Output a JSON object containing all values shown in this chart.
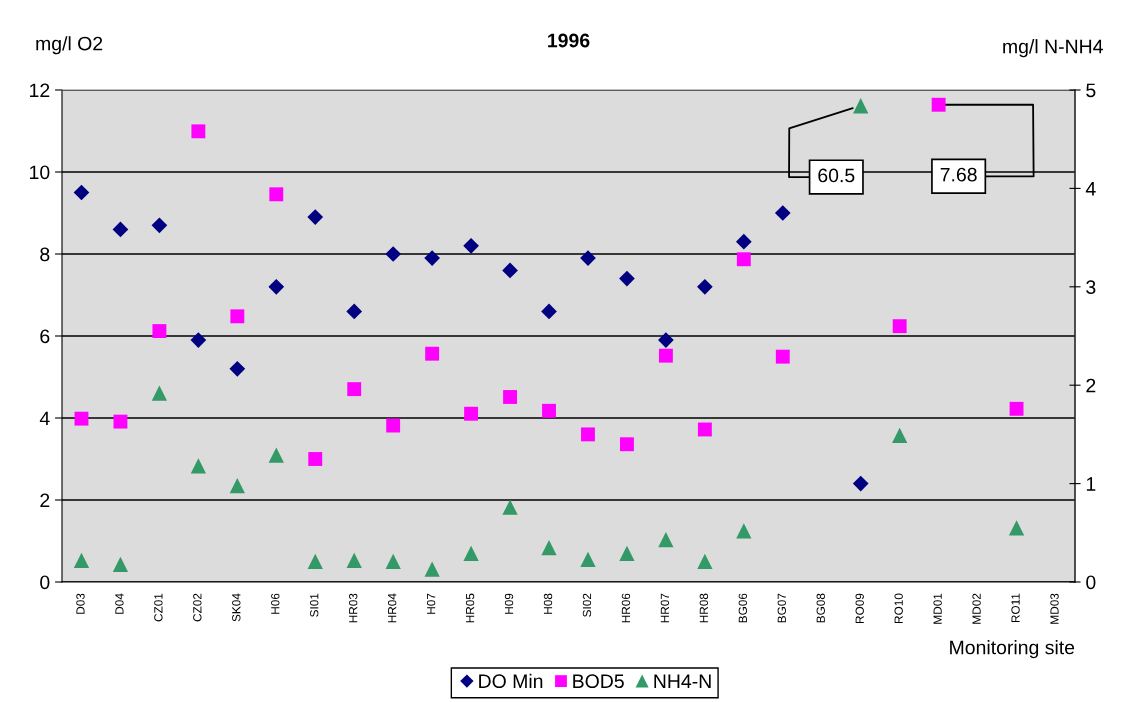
{
  "chart_data": {
    "type": "scatter",
    "title": "1996",
    "ylabel": "mg/l O2",
    "y2label": "mg/l N-NH4",
    "xlabel": "Monitoring site",
    "categories": [
      "D03",
      "D04",
      "CZ01",
      "CZ02",
      "SK04",
      "H06",
      "SI01",
      "HR03",
      "HR04",
      "H07",
      "HR05",
      "H09",
      "H08",
      "SI02",
      "HR06",
      "HR07",
      "HR08",
      "BG06",
      "BG07",
      "BG08",
      "RO09",
      "RO10",
      "MD01",
      "MD02",
      "RO11",
      "MD03"
    ],
    "series": [
      {
        "name": "DO Min",
        "color": "#000080",
        "marker": "diamond",
        "values": [
          9.5,
          8.6,
          8.7,
          5.9,
          5.2,
          7.2,
          8.9,
          6.6,
          8.0,
          7.9,
          8.2,
          7.6,
          6.6,
          7.9,
          7.4,
          5.9,
          7.2,
          8.3,
          9.0,
          null,
          2.4,
          null,
          null,
          null,
          null,
          null
        ]
      },
      {
        "name": "BOD5",
        "color": "#ff00ff",
        "marker": "square",
        "axis": "y2",
        "values": [
          1.66,
          1.63,
          2.55,
          4.58,
          2.7,
          3.94,
          1.25,
          1.96,
          1.59,
          2.32,
          1.71,
          1.88,
          1.74,
          1.5,
          1.4,
          2.3,
          1.55,
          3.28,
          2.29,
          null,
          null,
          2.6,
          4.85,
          null,
          1.76,
          null
        ]
      },
      {
        "name": "NH4-N",
        "color": "#339966",
        "marker": "triangle",
        "axis": "y2",
        "values": [
          0.22,
          0.18,
          1.92,
          1.18,
          0.98,
          1.29,
          0.21,
          0.22,
          0.21,
          0.13,
          0.29,
          0.76,
          0.35,
          0.23,
          0.29,
          0.43,
          0.21,
          0.52,
          null,
          null,
          4.84,
          1.49,
          null,
          null,
          0.55,
          null
        ]
      }
    ],
    "ylim": [
      0,
      12
    ],
    "yticks": [
      0,
      2,
      4,
      6,
      8,
      10,
      12
    ],
    "y2lim": [
      0,
      5
    ],
    "y2ticks": [
      0,
      1,
      2,
      3,
      4,
      5
    ],
    "grid": "y",
    "legend": "bottom",
    "annotations": [
      {
        "text": "60.5",
        "x": "RO09",
        "y": 11.62
      },
      {
        "text": "7.68",
        "x": "MD01",
        "y": 11.64
      }
    ]
  }
}
